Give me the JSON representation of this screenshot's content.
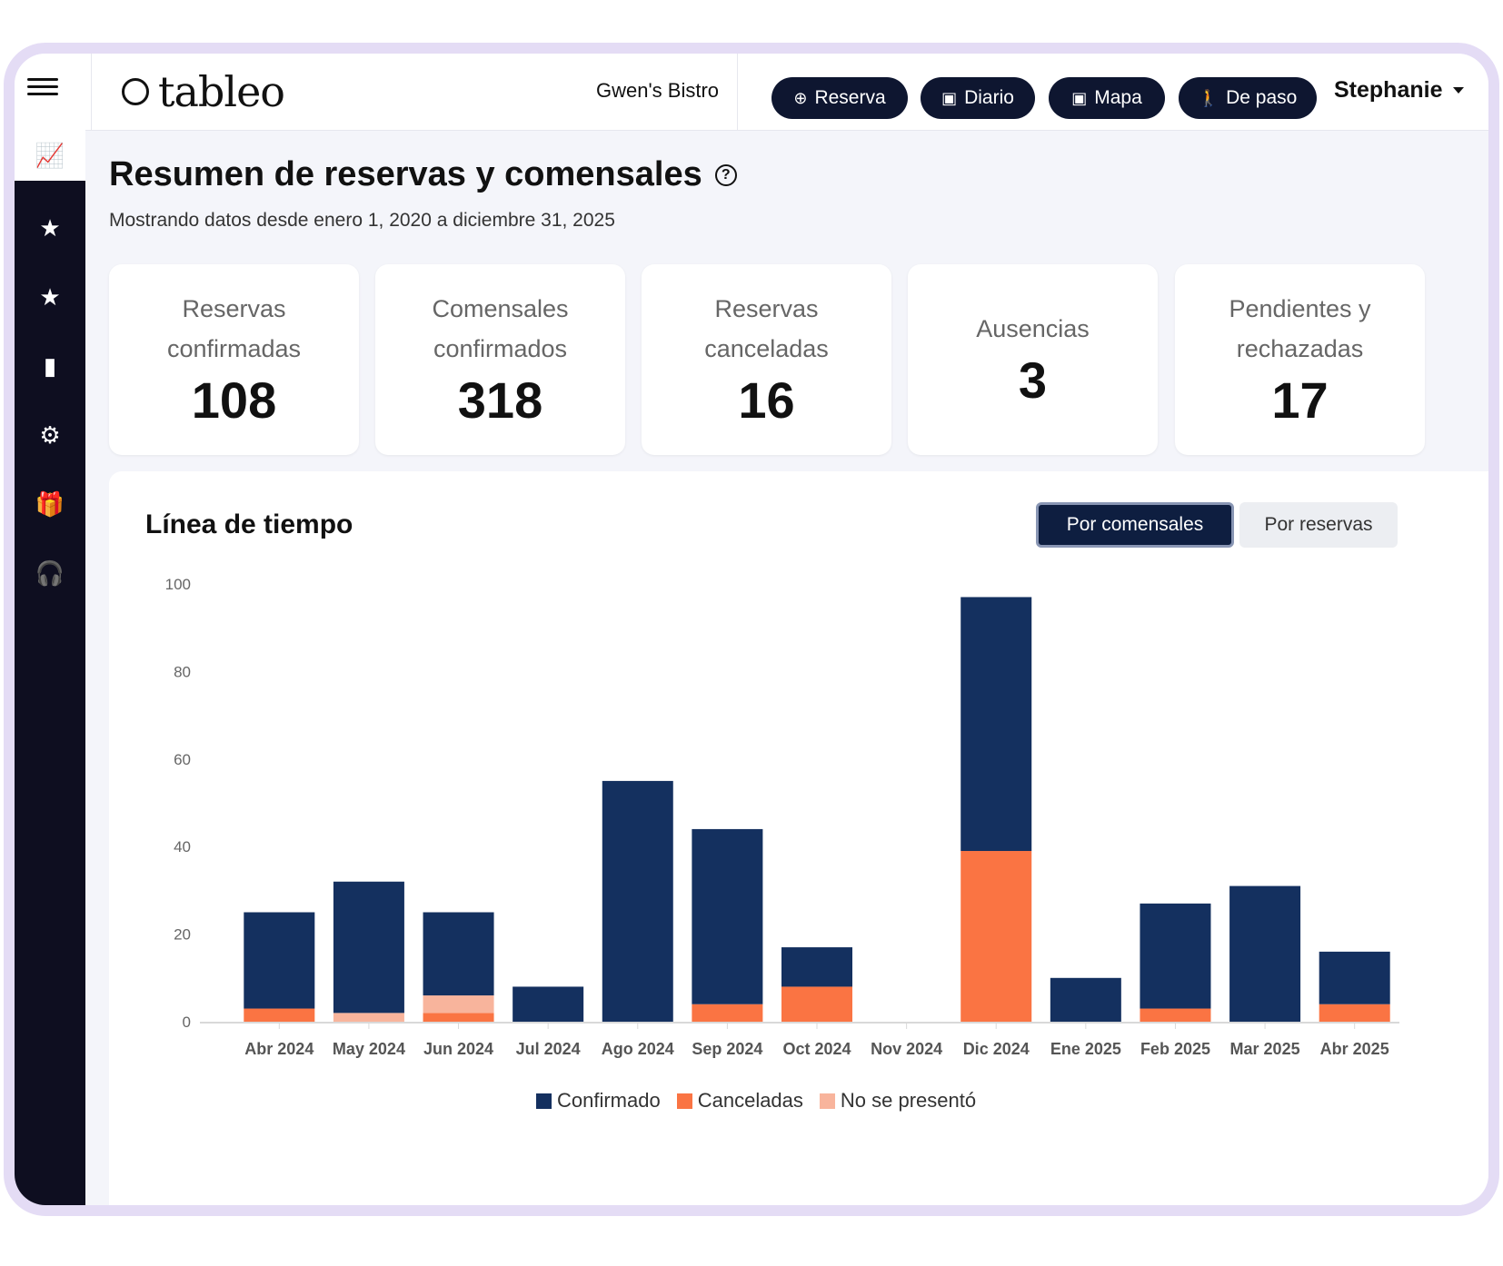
{
  "app": {
    "logo_text": "tableo",
    "venue": "Gwen's Bistro",
    "user": "Stephanie"
  },
  "header_buttons": [
    {
      "label": "Reserva",
      "icon": "plus-circle-icon"
    },
    {
      "label": "Diario",
      "icon": "calendar-icon"
    },
    {
      "label": "Mapa",
      "icon": "calendar-icon"
    },
    {
      "label": "De paso",
      "icon": "walking-icon"
    }
  ],
  "sidebar": {
    "items": [
      {
        "icon": "chart-icon",
        "active": true
      },
      {
        "icon": "star-icon"
      },
      {
        "icon": "star-icon"
      },
      {
        "icon": "clipboard-icon"
      },
      {
        "icon": "gear-icon"
      },
      {
        "icon": "gift-icon"
      },
      {
        "icon": "headset-icon"
      }
    ]
  },
  "page": {
    "title": "Resumen de reservas y comensales",
    "subtitle": "Mostrando datos desde enero 1, 2020 a diciembre 31, 2025"
  },
  "stats": [
    {
      "label": "Reservas confirmadas",
      "value": "108"
    },
    {
      "label": "Comensales confirmados",
      "value": "318"
    },
    {
      "label": "Reservas canceladas",
      "value": "16"
    },
    {
      "label": "Ausencias",
      "value": "3"
    },
    {
      "label": "Pendientes y rechazadas",
      "value": "17"
    }
  ],
  "timeline": {
    "title": "Línea de tiempo",
    "toggle_active": "Por comensales",
    "toggle_inactive": "Por reservas"
  },
  "colors": {
    "confirmed": "#14305f",
    "cancelled": "#fa7443",
    "noshow": "#f8b49c",
    "button_bg": "#0e1630",
    "sidebar_bg": "#0e0e20",
    "frame": "#e4dcf5"
  },
  "chart_data": {
    "type": "bar",
    "stacked": true,
    "categories": [
      "Abr 2024",
      "May 2024",
      "Jun 2024",
      "Jul 2024",
      "Ago 2024",
      "Sep 2024",
      "Oct 2024",
      "Nov 2024",
      "Dic 2024",
      "Ene 2025",
      "Feb 2025",
      "Mar 2025",
      "Abr 2025"
    ],
    "series": [
      {
        "name": "Confirmado",
        "color": "#14305f",
        "values": [
          22,
          30,
          19,
          8,
          55,
          40,
          9,
          0,
          58,
          10,
          24,
          31,
          12
        ]
      },
      {
        "name": "Canceladas",
        "color": "#fa7443",
        "values": [
          3,
          0,
          2,
          0,
          0,
          4,
          8,
          0,
          39,
          0,
          3,
          0,
          4
        ]
      },
      {
        "name": "No se presentó",
        "color": "#f8b49c",
        "values": [
          0,
          2,
          4,
          0,
          0,
          0,
          0,
          0,
          0,
          0,
          0,
          0,
          0
        ]
      }
    ],
    "yticks": [
      0,
      20,
      40,
      60,
      80,
      100
    ],
    "ylim": [
      0,
      100
    ],
    "legend_position": "bottom",
    "grid": false
  }
}
